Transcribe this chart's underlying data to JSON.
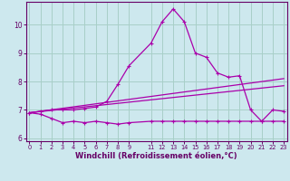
{
  "xlabel": "Windchill (Refroidissement éolien,°C)",
  "background_color": "#cde8ee",
  "grid_color": "#a8cfc8",
  "line_color": "#aa00aa",
  "x_values": [
    0,
    1,
    2,
    3,
    4,
    5,
    6,
    7,
    8,
    9,
    11,
    12,
    13,
    14,
    15,
    16,
    17,
    18,
    19,
    20,
    21,
    22,
    23
  ],
  "series_main": [
    6.9,
    6.95,
    7.0,
    7.0,
    7.0,
    7.05,
    7.1,
    7.3,
    7.9,
    8.55,
    9.35,
    10.1,
    10.55,
    10.1,
    9.0,
    8.85,
    8.3,
    8.15,
    8.2,
    7.0,
    6.6,
    7.0,
    6.95
  ],
  "series_low": [
    6.9,
    6.85,
    6.7,
    6.55,
    6.6,
    6.55,
    6.6,
    6.55,
    6.5,
    6.55,
    6.6,
    6.6,
    6.6,
    6.6,
    6.6,
    6.6,
    6.6,
    6.6,
    6.6,
    6.6,
    6.6,
    6.6,
    6.6
  ],
  "trend1_x": [
    0,
    23
  ],
  "trend1_y": [
    6.9,
    7.85
  ],
  "trend2_x": [
    0,
    23
  ],
  "trend2_y": [
    6.9,
    8.1
  ],
  "ylim": [
    5.9,
    10.8
  ],
  "xlim": [
    -0.3,
    23.3
  ],
  "yticks": [
    6,
    7,
    8,
    9,
    10
  ],
  "xticks": [
    0,
    1,
    2,
    3,
    4,
    5,
    6,
    7,
    8,
    9,
    11,
    12,
    13,
    14,
    15,
    16,
    17,
    18,
    19,
    20,
    21,
    22,
    23
  ],
  "xlabel_fontsize": 6,
  "tick_fontsize": 5.5
}
